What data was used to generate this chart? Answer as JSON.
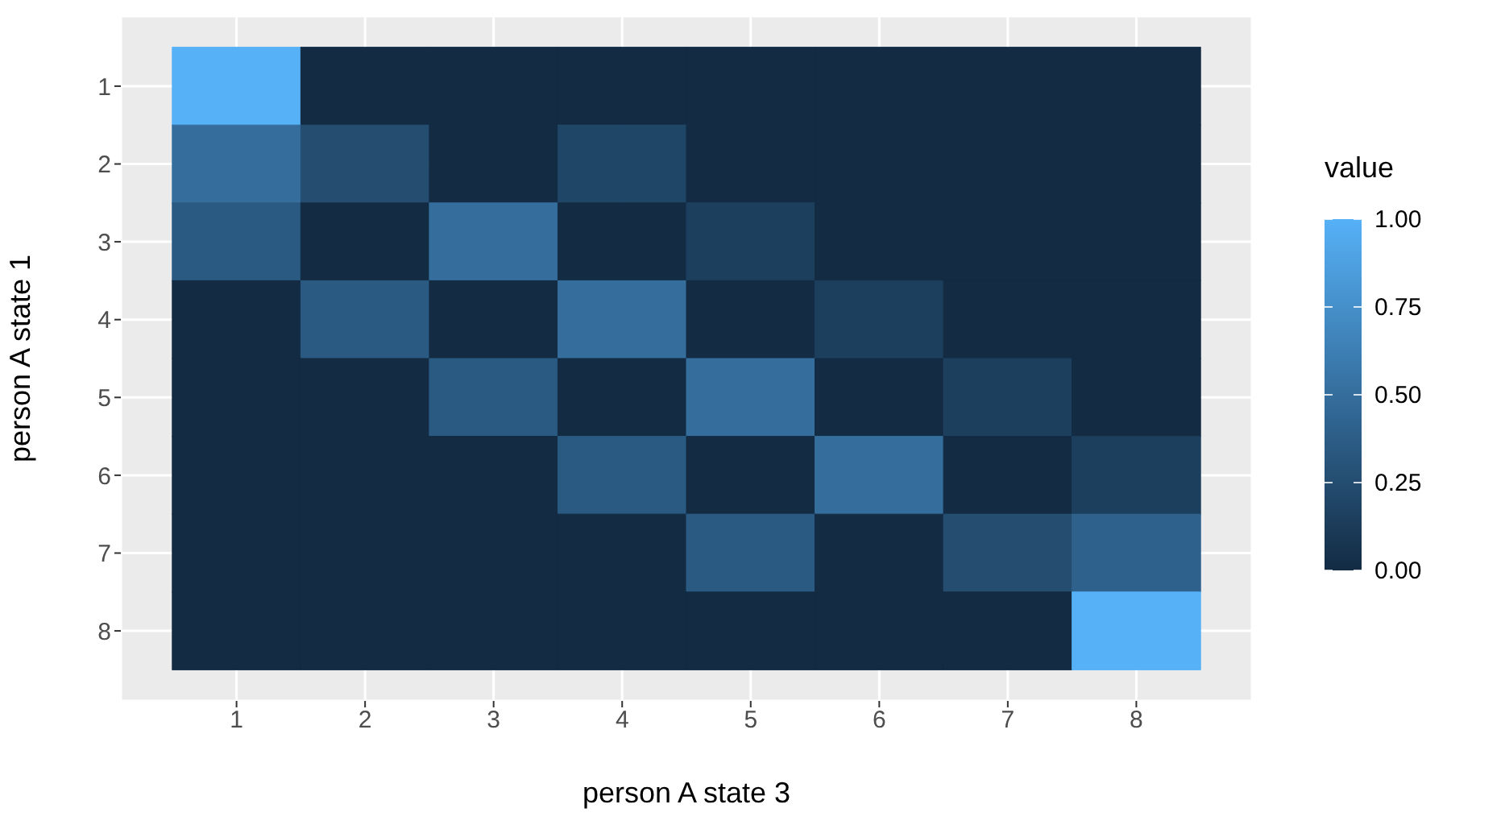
{
  "chart_data": {
    "type": "heatmap",
    "xlabel": "person A state 3",
    "ylabel": "person A state 1",
    "clabel": "value",
    "categories": [
      "1",
      "2",
      "3",
      "4",
      "5",
      "6",
      "7",
      "8"
    ],
    "y_categories": [
      "1",
      "2",
      "3",
      "4",
      "5",
      "6",
      "7",
      "8"
    ],
    "cells": [
      [
        1,
        0,
        0,
        0,
        0,
        0,
        0,
        0
      ],
      [
        0.5,
        0.25,
        0,
        0.2,
        0,
        0,
        0,
        0
      ],
      [
        0.35,
        0,
        0.5,
        0,
        0.15,
        0,
        0,
        0
      ],
      [
        0,
        0.35,
        0,
        0.5,
        0,
        0.15,
        0,
        0
      ],
      [
        0,
        0,
        0.35,
        0,
        0.5,
        0,
        0.15,
        0
      ],
      [
        0,
        0,
        0,
        0.35,
        0,
        0.5,
        0,
        0.15
      ],
      [
        0,
        0,
        0,
        0,
        0.35,
        0,
        0.25,
        0.4
      ],
      [
        0,
        0,
        0,
        0,
        0,
        0,
        0,
        1
      ]
    ],
    "clim": [
      0,
      1
    ],
    "cticks": [
      {
        "value": 0,
        "label": "0.00"
      },
      {
        "value": 0.25,
        "label": "0.25"
      },
      {
        "value": 0.5,
        "label": "0.50"
      },
      {
        "value": 0.75,
        "label": "0.75"
      },
      {
        "value": 1,
        "label": "1.00"
      }
    ],
    "grid": true
  }
}
